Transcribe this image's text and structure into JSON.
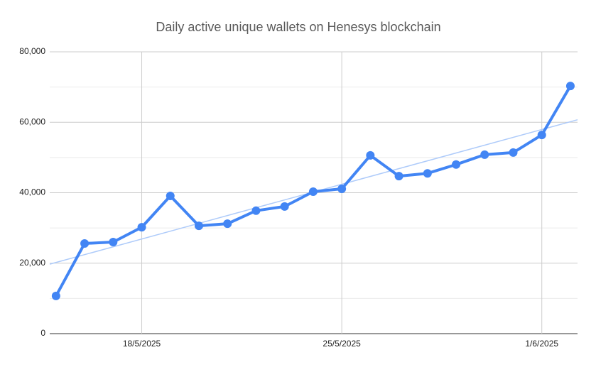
{
  "chart_data": {
    "type": "line",
    "title": "Daily active unique wallets on Henesys blockchain",
    "x": [
      "2025-05-15",
      "2025-05-16",
      "2025-05-17",
      "2025-05-18",
      "2025-05-19",
      "2025-05-20",
      "2025-05-21",
      "2025-05-22",
      "2025-05-23",
      "2025-05-24",
      "2025-05-25",
      "2025-05-26",
      "2025-05-27",
      "2025-05-28",
      "2025-05-29",
      "2025-05-30",
      "2025-05-31",
      "2025-06-01",
      "2025-06-02"
    ],
    "series": [
      {
        "color": "#4285f4",
        "values": [
          10700,
          25600,
          26000,
          30200,
          39100,
          30600,
          31200,
          34900,
          36100,
          40300,
          41100,
          50600,
          44700,
          45500,
          48000,
          50800,
          51400,
          56400,
          70300
        ]
      }
    ],
    "trendline": true,
    "trendline_color": "#aecbfa",
    "ylim": [
      0,
      80000
    ],
    "yticks": [
      0,
      {
        "value": 20000,
        "label": "20,000"
      },
      {
        "value": 40000,
        "label": "40,000"
      },
      {
        "value": 60000,
        "label": "60,000"
      },
      {
        "value": 80000,
        "label": "80,000"
      }
    ],
    "minor_yticks": [
      10000,
      30000,
      50000,
      70000
    ],
    "xticks": [
      {
        "value": "2025-05-18",
        "label": "18/5/2025"
      },
      {
        "value": "2025-05-25",
        "label": "25/5/2025"
      },
      {
        "value": "2025-06-01",
        "label": "1/6/2025"
      }
    ],
    "grid": true
  }
}
